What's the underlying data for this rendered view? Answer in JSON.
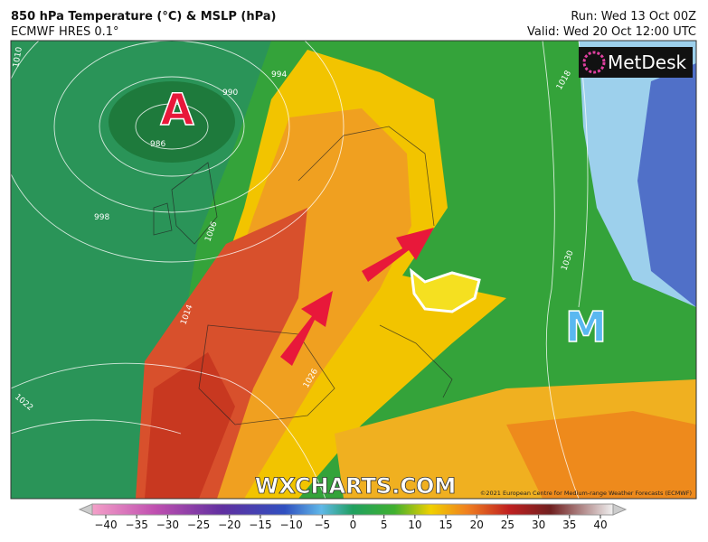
{
  "header": {
    "title": "850 hPa Temperature (°C) & MSLP (hPa)",
    "subtitle": "ECMWF HRES 0.1°",
    "run": "Run: Wed 13 Oct 00Z",
    "valid": "Valid: Wed 20 Oct 12:00 UTC"
  },
  "logo": "MetDesk",
  "map": {
    "low_label": "A",
    "high_label": "M",
    "isobar_labels": [
      "1010",
      "994",
      "990",
      "986",
      "998",
      "1006",
      "1018",
      "1022",
      "1026",
      "1030",
      "1014"
    ],
    "watermark": "WXCHARTS.COM",
    "credit": "©2021 European Centre for Medium-range Weather Forecasts (ECMWF)"
  },
  "colorbar": {
    "ticks": [
      {
        "value": -40,
        "label": "−40"
      },
      {
        "value": -35,
        "label": "−35"
      },
      {
        "value": -30,
        "label": "−30"
      },
      {
        "value": -25,
        "label": "−25"
      },
      {
        "value": -20,
        "label": "−20"
      },
      {
        "value": -15,
        "label": "−15"
      },
      {
        "value": -10,
        "label": "−10"
      },
      {
        "value": -5,
        "label": "−5"
      },
      0,
      5,
      10,
      15,
      20,
      25,
      30,
      35,
      40
    ]
  }
}
